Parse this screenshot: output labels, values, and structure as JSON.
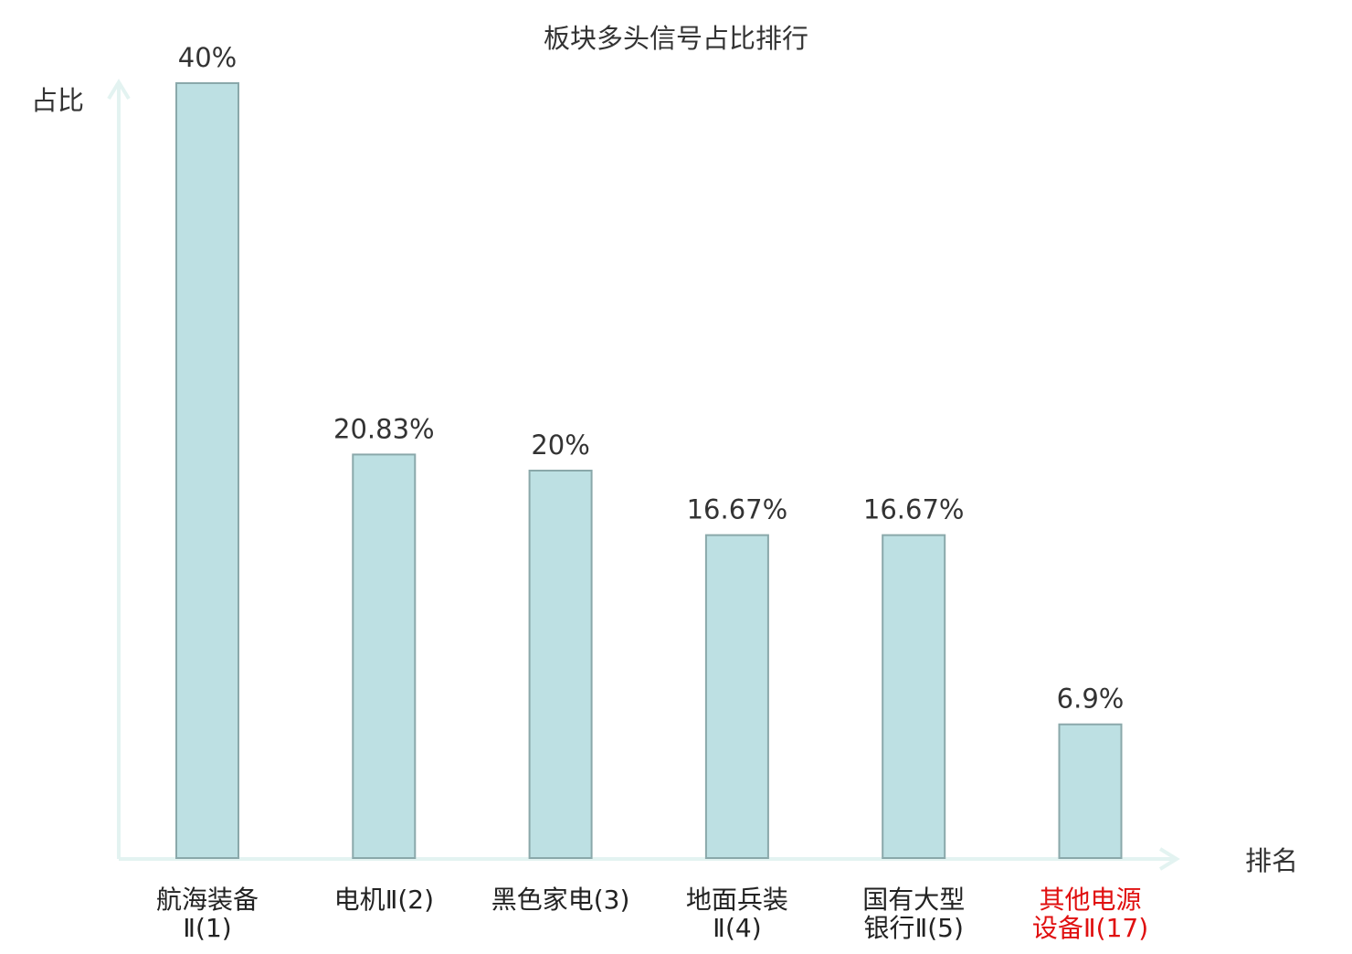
{
  "chart_data": {
    "type": "bar",
    "title": "板块多头信号占比排行",
    "ylabel": "占比",
    "xlabel": "排名",
    "categories": [
      [
        "航海装备",
        "Ⅱ(1)"
      ],
      [
        "电机Ⅱ(2)"
      ],
      [
        "黑色家电(3)"
      ],
      [
        "地面兵装",
        "Ⅱ(4)"
      ],
      [
        "国有大型",
        "银行Ⅱ(5)"
      ],
      [
        "其他电源",
        "设备Ⅱ(17)"
      ]
    ],
    "values": [
      40,
      20.83,
      20,
      16.67,
      16.67,
      6.9
    ],
    "value_labels": [
      "40%",
      "20.83%",
      "20%",
      "16.67%",
      "16.67%",
      "6.9%"
    ],
    "highlight_index": 5,
    "ylim": [
      0,
      40
    ],
    "grid": false,
    "legend": "none"
  },
  "colors": {
    "bar_fill": "#bde0e3",
    "bar_stroke": "#8aa8aa",
    "axis": "#e3f3f1",
    "text": "#333333",
    "highlight_text": "#e01010"
  }
}
